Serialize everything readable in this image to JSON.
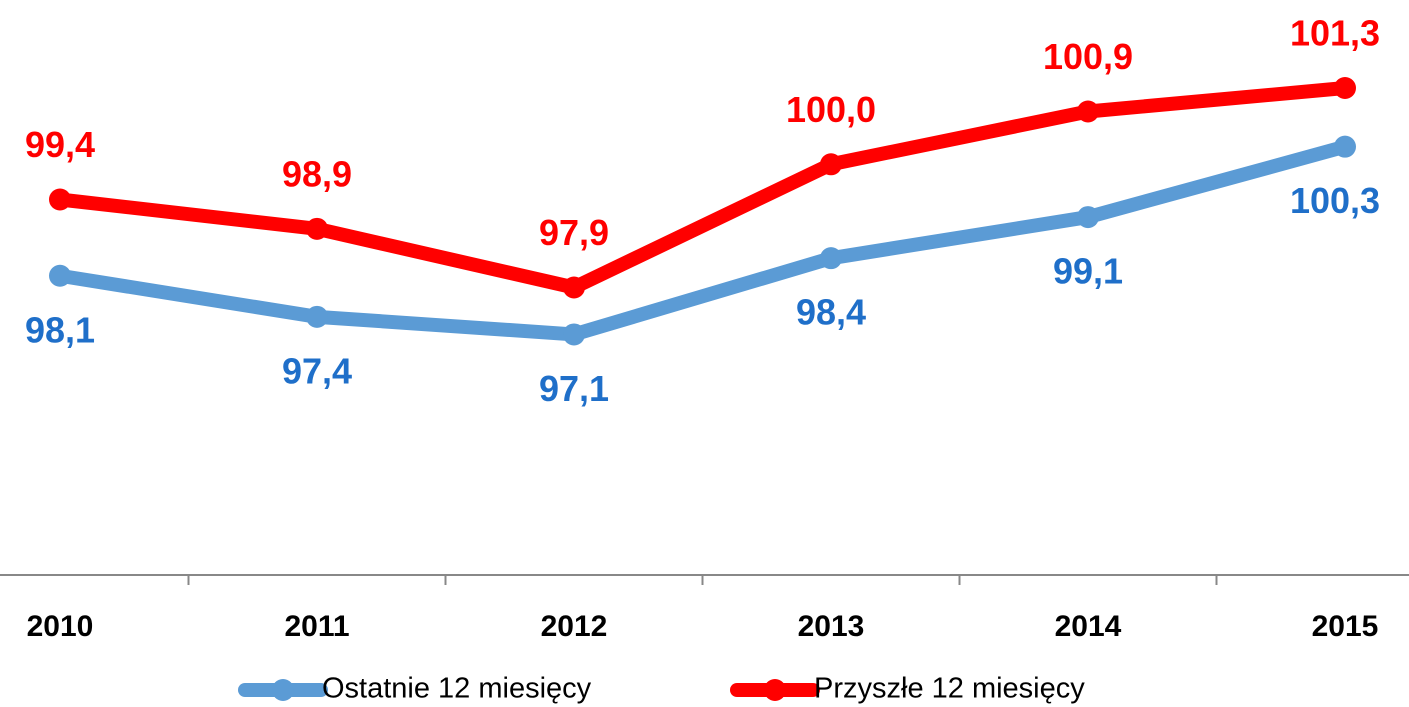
{
  "chart_data": {
    "type": "line",
    "categories": [
      "2010",
      "2011",
      "2012",
      "2013",
      "2014",
      "2015"
    ],
    "series": [
      {
        "name": "Ostatnie 12 miesięcy",
        "color": "#5b9bd5",
        "label_color": "#1f6fc9",
        "values": [
          98.1,
          97.4,
          97.1,
          98.4,
          99.1,
          100.3
        ],
        "value_labels": [
          "98,1",
          "97,4",
          "97,1",
          "98,4",
          "99,1",
          "100,3"
        ]
      },
      {
        "name": "Przyszłe 12 miesięcy",
        "color": "#ff0000",
        "label_color": "#ff0000",
        "values": [
          99.4,
          98.9,
          97.9,
          100.0,
          100.9,
          101.3
        ],
        "value_labels": [
          "99,4",
          "98,9",
          "97,9",
          "100,0",
          "100,9",
          "101,3"
        ]
      }
    ],
    "ylim": [
      93,
      102.8
    ],
    "legend": "bottom"
  }
}
